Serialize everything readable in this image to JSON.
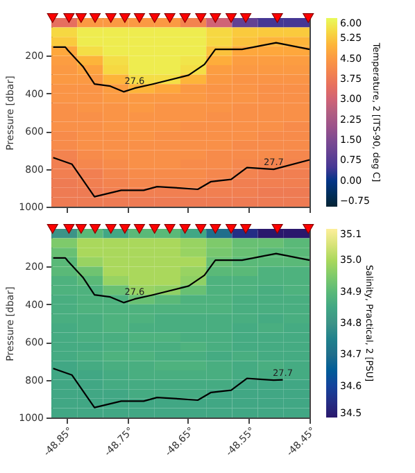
{
  "chart_data": [
    {
      "type": "heatmap",
      "ylabel": "Pressure [dbar]",
      "clabel": "Temperature, 2 [ITS-90, deg C]",
      "grid": false,
      "tick_labels": "y",
      "xlim": [
        -48.875,
        -48.45
      ],
      "xticks": [
        -48.85,
        -48.75,
        -48.65,
        -48.55,
        -48.45
      ],
      "ylim": [
        1000,
        0
      ],
      "yticks": [
        200,
        400,
        600,
        800,
        1000
      ],
      "clim": [
        -0.95,
        6.0
      ],
      "x": [
        -48.85375,
        -48.81125,
        -48.76875,
        -48.72625,
        -48.68375,
        -48.64125,
        -48.59875,
        -48.55625,
        -48.51375,
        -48.47125
      ],
      "cticks": [
        {
          "value": -0.75,
          "label": "−0.75"
        },
        {
          "value": 0,
          "label": "0.00"
        },
        {
          "value": 0.75,
          "label": "0.75"
        },
        {
          "value": 1.5,
          "label": "1.50"
        },
        {
          "value": 2.25,
          "label": "2.25"
        },
        {
          "value": 3,
          "label": "3.00"
        },
        {
          "value": 3.75,
          "label": "3.75"
        },
        {
          "value": 4.5,
          "label": "4.50"
        },
        {
          "value": 5.25,
          "label": "5.25"
        },
        {
          "value": 6,
          "label": "6.00"
        }
      ],
      "cells": [
        [
          3.5,
          4.5,
          4.5,
          4.5,
          4.5,
          4.0,
          3.0,
          1.0,
          0.5,
          0.5
        ],
        [
          5.5,
          5.8,
          5.8,
          5.8,
          5.8,
          5.8,
          5.5,
          5.3,
          5.3,
          5.3
        ],
        [
          5.3,
          5.8,
          5.8,
          5.8,
          5.8,
          5.8,
          5.5,
          5.2,
          5.0,
          5.0
        ],
        [
          4.8,
          5.6,
          5.8,
          5.8,
          5.8,
          5.8,
          5.2,
          4.8,
          4.8,
          4.8
        ],
        [
          4.6,
          5.0,
          5.6,
          5.8,
          5.8,
          5.7,
          4.9,
          4.6,
          4.6,
          4.6
        ],
        [
          4.5,
          4.7,
          5.5,
          5.8,
          5.8,
          5.6,
          4.6,
          4.5,
          4.5,
          4.5
        ],
        [
          4.5,
          4.5,
          5.0,
          5.6,
          5.6,
          5.0,
          4.5,
          4.4,
          4.4,
          4.4
        ],
        [
          4.4,
          4.4,
          4.6,
          5.0,
          4.8,
          4.5,
          4.4,
          4.4,
          4.3,
          4.3
        ],
        [
          4.4,
          4.4,
          4.5,
          4.5,
          4.5,
          4.5,
          4.4,
          4.4,
          4.3,
          4.3
        ],
        [
          4.3,
          4.4,
          4.4,
          4.5,
          4.4,
          4.4,
          4.4,
          4.3,
          4.3,
          4.3
        ],
        [
          4.3,
          4.3,
          4.4,
          4.4,
          4.4,
          4.4,
          4.3,
          4.3,
          4.3,
          4.3
        ],
        [
          4.3,
          4.3,
          4.4,
          4.4,
          4.4,
          4.3,
          4.3,
          4.3,
          4.3,
          4.2
        ],
        [
          4.2,
          4.3,
          4.3,
          4.4,
          4.3,
          4.3,
          4.3,
          4.3,
          4.2,
          4.2
        ],
        [
          4.2,
          4.3,
          4.3,
          4.3,
          4.3,
          4.3,
          4.3,
          4.2,
          4.2,
          4.2
        ],
        [
          4.0,
          4.2,
          4.3,
          4.3,
          4.3,
          4.3,
          4.2,
          4.2,
          4.2,
          4.1
        ],
        [
          3.9,
          4.1,
          4.2,
          4.3,
          4.3,
          4.2,
          4.2,
          4.1,
          4.0,
          4.0
        ],
        [
          3.9,
          3.9,
          4.1,
          4.2,
          4.2,
          4.2,
          4.1,
          4.0,
          3.9,
          3.9
        ],
        [
          3.8,
          3.9,
          4.0,
          4.1,
          4.1,
          4.1,
          4.0,
          3.9,
          3.9,
          3.9
        ],
        [
          3.8,
          3.8,
          3.9,
          3.9,
          3.9,
          3.9,
          3.9,
          3.9,
          3.8,
          3.8
        ],
        [
          3.8,
          3.8,
          3.8,
          3.8,
          3.8,
          3.8,
          3.8,
          3.8,
          3.8,
          3.8
        ]
      ],
      "series": [
        {
          "type": "line",
          "color": "#000000",
          "x": [
            -48.872,
            -48.852,
            -48.848,
            -48.823,
            -48.804,
            -48.778,
            -48.756,
            -48.738,
            -48.708,
            -48.649,
            -48.623,
            -48.605,
            -48.561,
            -48.505,
            -48.45
          ],
          "values": [
            154,
            154,
            170,
            257,
            350,
            361,
            391,
            372,
            350,
            303,
            246,
            166,
            166,
            131,
            166
          ]
        },
        {
          "type": "line",
          "color": "#000000",
          "x": [
            -48.872,
            -48.841,
            -48.804,
            -48.76,
            -48.723,
            -48.701,
            -48.664,
            -48.634,
            -48.612,
            -48.579,
            -48.553,
            -48.509,
            -48.45
          ],
          "values": [
            740,
            775,
            947,
            913,
            913,
            894,
            901,
            908,
            867,
            855,
            793,
            802,
            752
          ]
        },
        {
          "type": "scatter",
          "marker": "triangle",
          "color": "#ff0000",
          "x": [
            -48.873,
            -48.846,
            -48.826,
            -48.803,
            -48.777,
            -48.754,
            -48.73,
            -48.705,
            -48.68,
            -48.655,
            -48.629,
            -48.605,
            -48.579,
            -48.555,
            -48.503,
            -48.452
          ],
          "values": [
            0,
            0,
            0,
            0,
            0,
            0,
            0,
            0,
            0,
            0,
            0,
            0,
            0,
            0,
            0,
            0
          ]
        }
      ],
      "annotations": [
        {
          "text": "27.6",
          "x": -48.738,
          "y": 372
        },
        {
          "text": "27.7",
          "x": -48.509,
          "y": 802
        }
      ]
    },
    {
      "type": "heatmap",
      "ylabel": "Pressure [dbar]",
      "clabel": "Salinity, Practical, 2 [PSU]",
      "grid": false,
      "xlim": [
        -48.875,
        -48.45
      ],
      "xticks": [
        {
          "value": -48.85,
          "label": "-48.85°"
        },
        {
          "value": -48.75,
          "label": "-48.75°"
        },
        {
          "value": -48.65,
          "label": "-48.65°"
        },
        {
          "value": -48.55,
          "label": "-48.55°"
        },
        {
          "value": -48.45,
          "label": "-48.45°"
        }
      ],
      "ylim": [
        1000,
        0
      ],
      "yticks": [
        200,
        400,
        600,
        800,
        1000
      ],
      "clim": [
        34.5,
        35.1
      ],
      "x": [
        -48.85375,
        -48.81125,
        -48.76875,
        -48.72625,
        -48.68375,
        -48.64125,
        -48.59875,
        -48.55625,
        -48.51375,
        -48.47125
      ],
      "cticks": [
        {
          "value": 34.5,
          "label": "34.5"
        },
        {
          "value": 34.6,
          "label": "34.6"
        },
        {
          "value": 34.7,
          "label": "34.7"
        },
        {
          "value": 34.8,
          "label": "34.8"
        },
        {
          "value": 34.9,
          "label": "34.9"
        },
        {
          "value": 35.0,
          "label": "35.0"
        },
        {
          "value": 35.1,
          "label": "35.1"
        }
      ],
      "cells": [
        [
          34.8,
          34.9,
          34.85,
          34.9,
          34.9,
          34.85,
          34.7,
          34.55,
          34.5,
          34.5
        ],
        [
          34.95,
          35.0,
          35.0,
          35.0,
          35.0,
          34.98,
          34.95,
          34.92,
          34.92,
          34.9
        ],
        [
          34.92,
          35.0,
          35.0,
          35.0,
          35.0,
          34.98,
          34.94,
          34.92,
          34.9,
          34.9
        ],
        [
          34.9,
          34.98,
          35.0,
          35.0,
          35.0,
          35.0,
          34.92,
          34.9,
          34.9,
          34.9
        ],
        [
          34.9,
          34.93,
          35.0,
          35.0,
          35.0,
          34.98,
          34.9,
          34.9,
          34.88,
          34.88
        ],
        [
          34.88,
          34.9,
          34.98,
          35.0,
          35.0,
          34.97,
          34.88,
          34.88,
          34.88,
          34.88
        ],
        [
          34.88,
          34.88,
          34.92,
          34.98,
          34.97,
          34.92,
          34.88,
          34.88,
          34.87,
          34.88
        ],
        [
          34.87,
          34.88,
          34.88,
          34.92,
          34.9,
          34.88,
          34.88,
          34.87,
          34.87,
          34.87
        ],
        [
          34.87,
          34.88,
          34.88,
          34.88,
          34.88,
          34.88,
          34.88,
          34.87,
          34.87,
          34.87
        ],
        [
          34.87,
          34.87,
          34.88,
          34.88,
          34.87,
          34.87,
          34.87,
          34.87,
          34.86,
          34.87
        ],
        [
          34.86,
          34.87,
          34.88,
          34.87,
          34.87,
          34.87,
          34.87,
          34.86,
          34.87,
          34.86
        ],
        [
          34.86,
          34.87,
          34.87,
          34.88,
          34.88,
          34.87,
          34.87,
          34.86,
          34.86,
          34.86
        ],
        [
          34.86,
          34.86,
          34.87,
          34.87,
          34.87,
          34.88,
          34.87,
          34.86,
          34.86,
          34.86
        ],
        [
          34.86,
          34.87,
          34.88,
          34.88,
          34.87,
          34.87,
          34.86,
          34.87,
          34.86,
          34.86
        ],
        [
          34.85,
          34.86,
          34.87,
          34.87,
          34.88,
          34.88,
          34.87,
          34.86,
          34.87,
          34.86
        ],
        [
          34.85,
          34.85,
          34.86,
          34.87,
          34.87,
          34.87,
          34.87,
          34.86,
          34.86,
          34.86
        ],
        [
          34.85,
          34.85,
          34.86,
          34.86,
          34.86,
          34.86,
          34.86,
          34.85,
          34.85,
          34.85
        ],
        [
          34.85,
          34.85,
          34.85,
          34.86,
          34.86,
          34.86,
          34.85,
          34.85,
          34.85,
          34.85
        ],
        [
          34.85,
          34.85,
          34.85,
          34.85,
          34.85,
          34.85,
          34.85,
          34.85,
          34.85,
          34.85
        ],
        [
          34.85,
          34.85,
          34.85,
          34.85,
          34.85,
          34.85,
          34.85,
          34.85,
          34.85,
          34.85
        ]
      ],
      "series": [
        {
          "type": "line",
          "color": "#000000",
          "x": [
            -48.872,
            -48.852,
            -48.848,
            -48.823,
            -48.804,
            -48.778,
            -48.756,
            -48.738,
            -48.708,
            -48.649,
            -48.623,
            -48.605,
            -48.561,
            -48.505,
            -48.45
          ],
          "values": [
            154,
            154,
            170,
            257,
            350,
            361,
            391,
            372,
            350,
            303,
            246,
            166,
            166,
            131,
            166
          ]
        },
        {
          "type": "line",
          "color": "#000000",
          "x": [
            -48.872,
            -48.841,
            -48.804,
            -48.76,
            -48.723,
            -48.701,
            -48.664,
            -48.634,
            -48.612,
            -48.579,
            -48.553,
            -48.509,
            -48.494
          ],
          "values": [
            740,
            775,
            947,
            913,
            913,
            894,
            901,
            908,
            867,
            855,
            793,
            802,
            800
          ]
        },
        {
          "type": "scatter",
          "marker": "triangle",
          "color": "#ff0000",
          "x": [
            -48.873,
            -48.846,
            -48.826,
            -48.803,
            -48.777,
            -48.754,
            -48.73,
            -48.705,
            -48.68,
            -48.655,
            -48.629,
            -48.605,
            -48.579,
            -48.555,
            -48.503,
            -48.452
          ],
          "values": [
            0,
            0,
            0,
            0,
            0,
            0,
            0,
            0,
            0,
            0,
            0,
            0,
            0,
            0,
            0,
            0
          ]
        }
      ],
      "annotations": [
        {
          "text": "27.6",
          "x": -48.738,
          "y": 372
        },
        {
          "text": "27.7",
          "x": -48.494,
          "y": 800
        }
      ]
    }
  ]
}
